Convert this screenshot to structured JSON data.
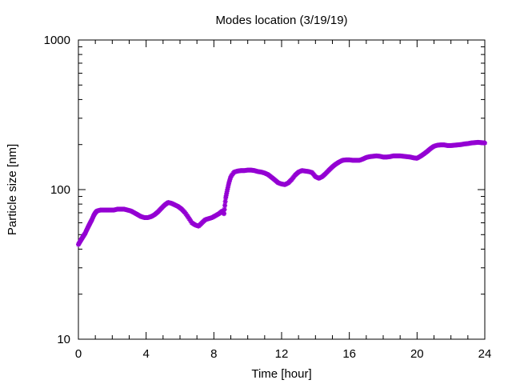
{
  "chart_data": {
    "type": "scatter",
    "title": "Modes location (3/19/19)",
    "xlabel": "Time [hour]",
    "ylabel": "Particle size [nm]",
    "xlim": [
      0,
      24
    ],
    "ylim": [
      10,
      1000
    ],
    "yscale": "log",
    "grid": false,
    "legend": "none",
    "xticks": [
      "0",
      "4",
      "8",
      "12",
      "16",
      "20",
      "24"
    ],
    "yticks": [
      "10",
      "100",
      "1000"
    ],
    "point_color": "#9400d3",
    "series": [
      {
        "points": [
          [
            0.0,
            43
          ],
          [
            0.1,
            45
          ],
          [
            0.2,
            47
          ],
          [
            0.3,
            49
          ],
          [
            0.4,
            51
          ],
          [
            0.5,
            54
          ],
          [
            0.6,
            57
          ],
          [
            0.7,
            60
          ],
          [
            0.8,
            63
          ],
          [
            0.9,
            67
          ],
          [
            1.0,
            70
          ],
          [
            1.1,
            72
          ],
          [
            1.3,
            73
          ],
          [
            1.5,
            73
          ],
          [
            1.7,
            73
          ],
          [
            1.9,
            73
          ],
          [
            2.1,
            73
          ],
          [
            2.3,
            74
          ],
          [
            2.5,
            74
          ],
          [
            2.7,
            74
          ],
          [
            2.9,
            73
          ],
          [
            3.1,
            72
          ],
          [
            3.3,
            70
          ],
          [
            3.5,
            68
          ],
          [
            3.7,
            66
          ],
          [
            3.9,
            65
          ],
          [
            4.1,
            65
          ],
          [
            4.3,
            66
          ],
          [
            4.5,
            68
          ],
          [
            4.7,
            71
          ],
          [
            4.9,
            75
          ],
          [
            5.1,
            79
          ],
          [
            5.3,
            82
          ],
          [
            5.5,
            81
          ],
          [
            5.7,
            79
          ],
          [
            5.9,
            77
          ],
          [
            6.1,
            74
          ],
          [
            6.3,
            70
          ],
          [
            6.5,
            65
          ],
          [
            6.7,
            60
          ],
          [
            6.9,
            58
          ],
          [
            7.1,
            57
          ],
          [
            7.3,
            60
          ],
          [
            7.5,
            63
          ],
          [
            7.7,
            64
          ],
          [
            7.9,
            65
          ],
          [
            8.1,
            67
          ],
          [
            8.3,
            69
          ],
          [
            8.5,
            72
          ],
          [
            8.6,
            69
          ],
          [
            8.7,
            88
          ],
          [
            8.8,
            100
          ],
          [
            8.9,
            112
          ],
          [
            9.0,
            122
          ],
          [
            9.2,
            131
          ],
          [
            9.4,
            133
          ],
          [
            9.6,
            134
          ],
          [
            9.8,
            134
          ],
          [
            10.0,
            135
          ],
          [
            10.2,
            135
          ],
          [
            10.4,
            134
          ],
          [
            10.6,
            132
          ],
          [
            10.8,
            131
          ],
          [
            11.0,
            129
          ],
          [
            11.2,
            126
          ],
          [
            11.4,
            121
          ],
          [
            11.6,
            116
          ],
          [
            11.8,
            111
          ],
          [
            12.0,
            109
          ],
          [
            12.2,
            108
          ],
          [
            12.4,
            111
          ],
          [
            12.6,
            117
          ],
          [
            12.8,
            125
          ],
          [
            13.0,
            131
          ],
          [
            13.2,
            134
          ],
          [
            13.4,
            133
          ],
          [
            13.6,
            132
          ],
          [
            13.8,
            130
          ],
          [
            14.0,
            122
          ],
          [
            14.2,
            119
          ],
          [
            14.4,
            122
          ],
          [
            14.6,
            128
          ],
          [
            14.8,
            135
          ],
          [
            15.0,
            142
          ],
          [
            15.2,
            148
          ],
          [
            15.4,
            153
          ],
          [
            15.6,
            157
          ],
          [
            15.8,
            158
          ],
          [
            16.0,
            158
          ],
          [
            16.2,
            157
          ],
          [
            16.4,
            157
          ],
          [
            16.6,
            157
          ],
          [
            16.8,
            160
          ],
          [
            17.0,
            164
          ],
          [
            17.2,
            166
          ],
          [
            17.4,
            167
          ],
          [
            17.6,
            168
          ],
          [
            17.8,
            167
          ],
          [
            18.0,
            165
          ],
          [
            18.2,
            165
          ],
          [
            18.4,
            166
          ],
          [
            18.6,
            168
          ],
          [
            18.8,
            168
          ],
          [
            19.0,
            168
          ],
          [
            19.2,
            167
          ],
          [
            19.4,
            166
          ],
          [
            19.6,
            165
          ],
          [
            19.8,
            163
          ],
          [
            20.0,
            162
          ],
          [
            20.2,
            167
          ],
          [
            20.4,
            173
          ],
          [
            20.6,
            180
          ],
          [
            20.8,
            188
          ],
          [
            21.0,
            195
          ],
          [
            21.2,
            198
          ],
          [
            21.4,
            199
          ],
          [
            21.6,
            199
          ],
          [
            21.8,
            197
          ],
          [
            22.0,
            197
          ],
          [
            22.2,
            198
          ],
          [
            22.4,
            199
          ],
          [
            22.6,
            200
          ],
          [
            22.8,
            202
          ],
          [
            23.0,
            203
          ],
          [
            23.2,
            205
          ],
          [
            23.4,
            206
          ],
          [
            23.6,
            207
          ],
          [
            23.8,
            206
          ],
          [
            24.0,
            205
          ]
        ]
      }
    ]
  }
}
